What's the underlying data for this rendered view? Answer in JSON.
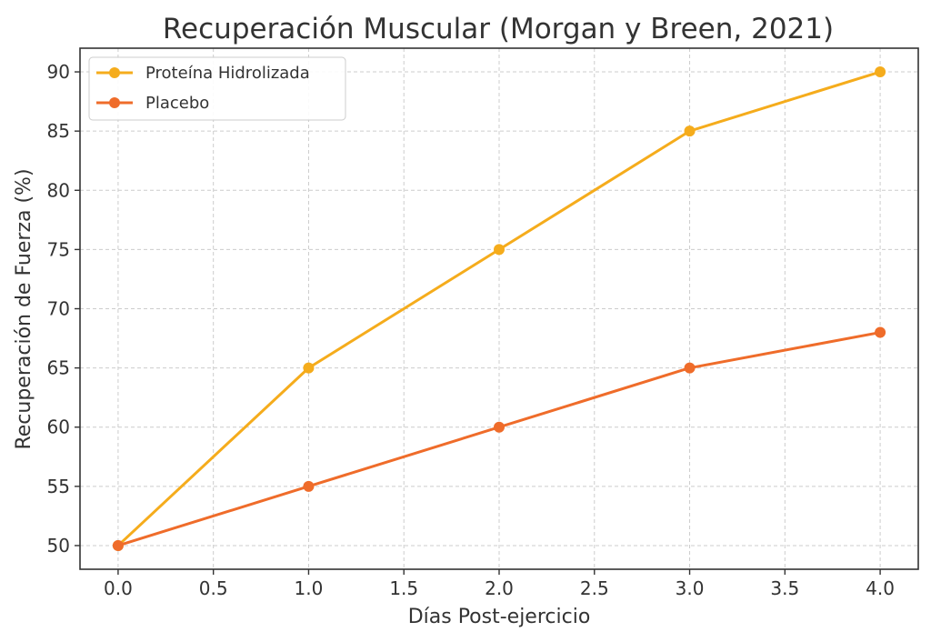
{
  "chart_data": {
    "type": "line",
    "title": "Recuperación Muscular (Morgan y Breen, 2021)",
    "xlabel": "Días Post-ejercicio",
    "ylabel": "Recuperación de Fuerza (%)",
    "xlim": [
      -0.2,
      4.2
    ],
    "ylim": [
      48,
      92
    ],
    "xticks": [
      0.0,
      0.5,
      1.0,
      1.5,
      2.0,
      2.5,
      3.0,
      3.5,
      4.0
    ],
    "xtick_labels": [
      "0.0",
      "0.5",
      "1.0",
      "1.5",
      "2.0",
      "2.5",
      "3.0",
      "3.5",
      "4.0"
    ],
    "yticks": [
      50,
      55,
      60,
      65,
      70,
      75,
      80,
      85,
      90
    ],
    "ytick_labels": [
      "50",
      "55",
      "60",
      "65",
      "70",
      "75",
      "80",
      "85",
      "90"
    ],
    "grid": true,
    "legend_position": "top-left",
    "x": [
      0,
      1,
      2,
      3,
      4
    ],
    "series": [
      {
        "name": "Proteína Hidrolizada",
        "color": "#f5ac1c",
        "values": [
          50,
          65,
          75,
          85,
          90
        ]
      },
      {
        "name": "Placebo",
        "color": "#ef6c2a",
        "values": [
          50,
          55,
          60,
          65,
          68
        ]
      }
    ]
  }
}
